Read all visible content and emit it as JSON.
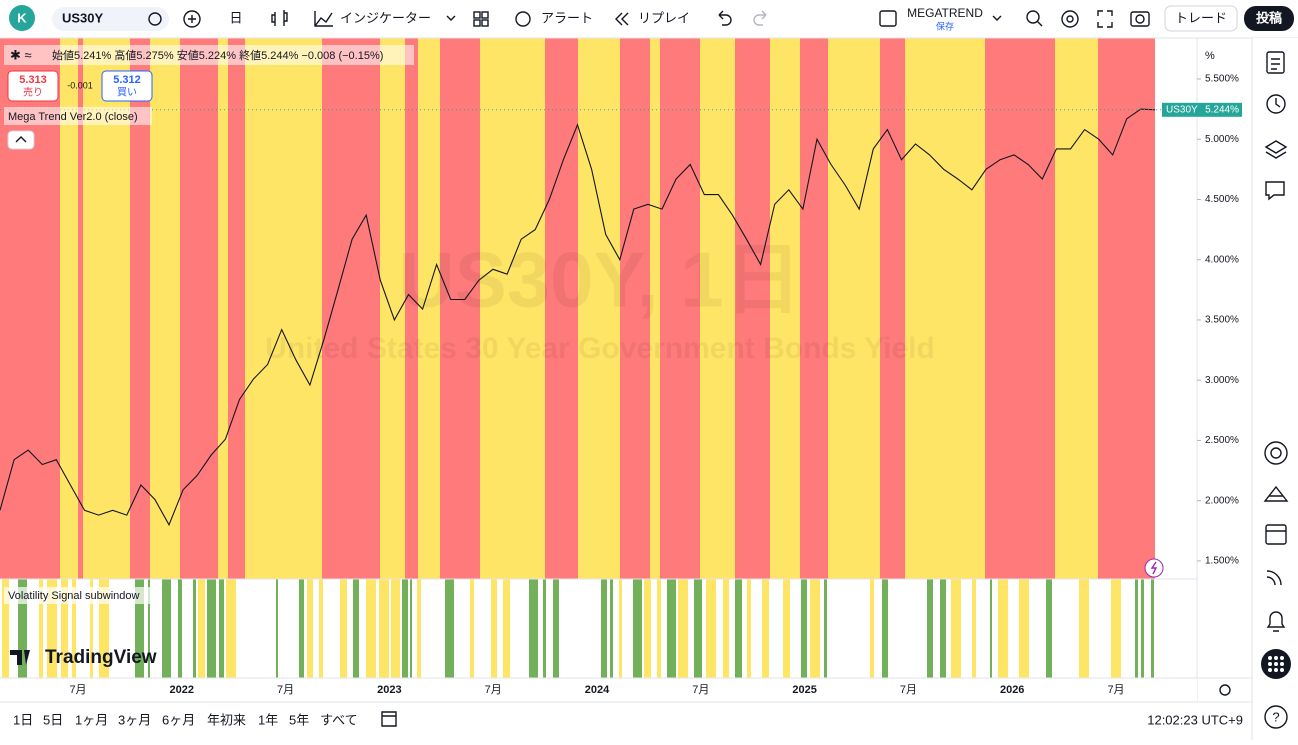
{
  "toolbar": {
    "symbol": "US30Y",
    "interval": "日",
    "indicators": "インジケーター",
    "alert": "アラート",
    "replay": "リプレイ",
    "layout_name": "MEGATREND",
    "layout_status": "保存",
    "trade": "トレード",
    "publish": "投稿"
  },
  "legend": {
    "ohlc": "始値5.241%  高値5.275%  安値5.224%  終値5.244%  −0.008 (−0.15%)",
    "sell_price": "5.313",
    "sell": "売り",
    "spread": "-0.001",
    "buy_price": "5.312",
    "buy": "買い",
    "indicator": "Mega Trend Ver2.0 (close)"
  },
  "watermark": {
    "symbol": "US30Y, 1日",
    "description": "United States 30 Year Government Bonds Yield"
  },
  "subwindow": {
    "title": "Volatility Signal subwindow"
  },
  "logo": "TradingView",
  "chart_data": {
    "type": "line",
    "color": "#131722",
    "values": [
      1.92,
      2.34,
      2.42,
      2.3,
      2.34,
      2.13,
      1.92,
      1.88,
      1.92,
      1.88,
      2.13,
      2.01,
      1.8,
      2.09,
      2.21,
      2.38,
      2.51,
      2.84,
      3.01,
      3.13,
      3.42,
      3.17,
      2.96,
      3.34,
      3.75,
      4.17,
      4.37,
      3.83,
      3.5,
      3.71,
      3.59,
      3.96,
      3.67,
      3.67,
      3.83,
      3.92,
      3.88,
      4.17,
      4.25,
      4.5,
      4.83,
      5.12,
      4.75,
      4.21,
      4.0,
      4.42,
      4.46,
      4.42,
      4.67,
      4.79,
      4.54,
      4.54,
      4.37,
      4.17,
      3.96,
      4.46,
      4.58,
      4.42,
      5.0,
      4.79,
      4.62,
      4.42,
      4.92,
      5.08,
      4.83,
      4.96,
      4.87,
      4.75,
      4.67,
      4.58,
      4.75,
      4.83,
      4.87,
      4.79,
      4.67,
      4.92,
      4.92,
      5.08,
      5.0,
      4.87,
      5.17,
      5.25,
      5.244
    ],
    "ylim": [
      1.35,
      5.84
    ],
    "yticks": [
      {
        "value": 1.5,
        "label": "1.500%"
      },
      {
        "value": 2.0,
        "label": "2.000%"
      },
      {
        "value": 2.5,
        "label": "2.500%"
      },
      {
        "value": 3.0,
        "label": "3.000%"
      },
      {
        "value": 3.5,
        "label": "3.500%"
      },
      {
        "value": 4.0,
        "label": "4.000%"
      },
      {
        "value": 4.5,
        "label": "4.500%"
      },
      {
        "value": 5.0,
        "label": "5.000%"
      },
      {
        "value": 5.5,
        "label": "5.500%"
      }
    ],
    "y_unit": "%",
    "last_label": {
      "symbol": "US30Y",
      "price": "5.244%"
    },
    "time_labels": [
      "7月",
      "2022",
      "7月",
      "2023",
      "7月",
      "2024",
      "7月",
      "2025",
      "7月",
      "2026",
      "7月"
    ]
  },
  "bottom_bar": {
    "ranges": [
      "1日",
      "5日",
      "1ヶ月",
      "3ヶ月",
      "6ヶ月",
      "年初来",
      "1年",
      "5年",
      "すべて"
    ],
    "clock": "12:02:23 UTC+9"
  }
}
